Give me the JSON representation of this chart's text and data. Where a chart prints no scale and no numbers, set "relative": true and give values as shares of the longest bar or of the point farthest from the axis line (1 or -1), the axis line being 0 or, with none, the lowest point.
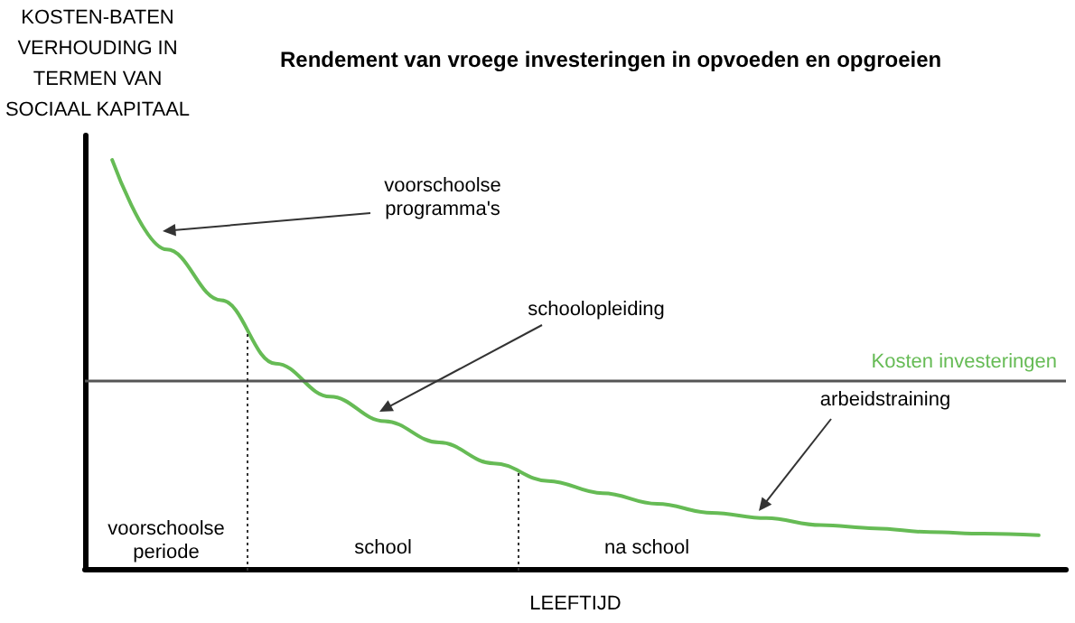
{
  "chart_data": {
    "type": "line",
    "title": "Rendement van vroege investeringen in opvoeden en opgroeien",
    "xlabel": "LEEFTIJD",
    "ylabel": "KOSTEN-BATEN VERHOUDING IN TERMEN VAN SOCIAAL KAPITAAL",
    "relative": true,
    "marker": "none",
    "line_style": "solid",
    "categories": [
      null,
      null,
      null,
      null,
      null,
      null,
      null,
      null,
      null,
      null,
      null,
      null,
      null,
      null,
      null,
      null,
      null,
      null
    ],
    "series": [
      {
        "color": "#66bb55",
        "values": [
          1.0,
          0.781,
          0.657,
          0.502,
          0.421,
          0.361,
          0.309,
          0.258,
          0.215,
          0.185,
          0.159,
          0.137,
          0.124,
          0.107,
          0.099,
          0.09,
          0.086,
          0.082
        ]
      }
    ],
    "ref_lines": [
      {
        "axis": "y",
        "value": 0.46,
        "label": "Kosten investeringen",
        "color": "#555555",
        "line_style": "solid"
      }
    ],
    "annotations": [
      "voorschoolse programma's",
      "schoolopleiding",
      "arbeidstraining",
      "voorschoolse periode",
      "school",
      "na school"
    ]
  }
}
